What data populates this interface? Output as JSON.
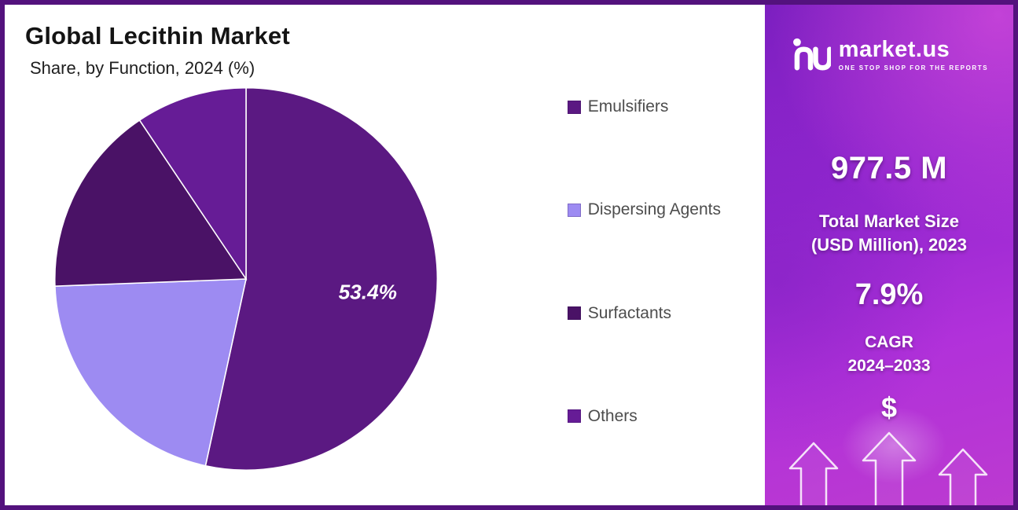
{
  "chart_data": {
    "type": "pie",
    "title": "Global Lecithin Market",
    "subtitle": "Share, by Function, 2024 (%)",
    "categories": [
      "Emulsifiers",
      "Dispersing Agents",
      "Surfactants",
      "Others"
    ],
    "values": [
      53.4,
      21.0,
      16.2,
      9.4
    ],
    "labels": [
      "53.4%",
      "",
      "",
      ""
    ],
    "colors": [
      "#5b1982",
      "#9d8bf2",
      "#4a1266",
      "#661c96"
    ],
    "start_angle": -90,
    "direction": "clockwise",
    "legend_position": "right"
  },
  "sidebar": {
    "logo": {
      "text": "market.us",
      "tagline": "ONE STOP SHOP FOR THE REPORTS"
    },
    "market_size": {
      "value": "977.5 M",
      "label_line1": "Total Market Size",
      "label_line2": "(USD Million), 2023"
    },
    "cagr": {
      "value": "7.9%",
      "label_line1": "CAGR",
      "label_line2": "2024–2033"
    },
    "dollar_symbol": "$"
  },
  "theme": {
    "frame_border": "#53127d",
    "sidebar_gradient_start": "#7c1fc0",
    "sidebar_gradient_end": "#bc3ad0",
    "panel_background": "#ffffff"
  }
}
